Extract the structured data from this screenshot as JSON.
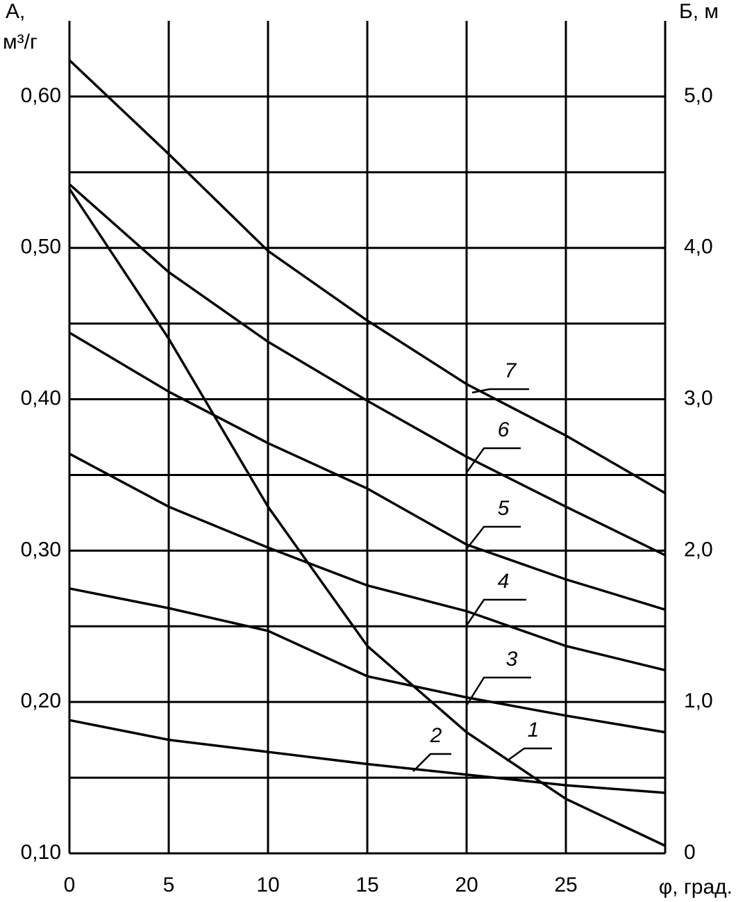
{
  "chart_data": {
    "type": "line",
    "y_label": [
      "А,",
      "м³/г"
    ],
    "y2_label": "Б, м",
    "x_label": "φ, град.",
    "x": [
      0,
      5,
      10,
      15,
      20,
      25,
      30
    ],
    "xlim": [
      0,
      30
    ],
    "xticks": [
      0,
      5,
      10,
      15,
      20,
      25
    ],
    "ylim": [
      0.1,
      0.65
    ],
    "yticks": [
      {
        "value": 0.1,
        "label": "0,10"
      },
      {
        "value": 0.2,
        "label": "0,20"
      },
      {
        "value": 0.3,
        "label": "0,30"
      },
      {
        "value": 0.4,
        "label": "0,40"
      },
      {
        "value": 0.5,
        "label": "0,50"
      },
      {
        "value": 0.6,
        "label": "0,60"
      }
    ],
    "ygrid": [
      0.15,
      0.25,
      0.35,
      0.45,
      0.55
    ],
    "y2lim": [
      0,
      5.5
    ],
    "y2ticks": [
      0,
      {
        "value": 1,
        "label": "1,0"
      },
      {
        "value": 2,
        "label": "2,0"
      },
      {
        "value": 3,
        "label": "3,0"
      },
      {
        "value": 4,
        "label": "4,0"
      },
      {
        "value": 5,
        "label": "5,0"
      }
    ],
    "grid": true,
    "series": [
      {
        "name": "1",
        "color": "#000000",
        "values": [
          0.539,
          0.44,
          0.329,
          0.237,
          0.18,
          0.136,
          0.105
        ]
      },
      {
        "name": "2",
        "color": "#000000",
        "values": [
          0.188,
          0.175,
          0.167,
          0.159,
          0.152,
          0.145,
          0.14
        ]
      },
      {
        "name": "3",
        "color": "#000000",
        "values": [
          0.275,
          0.262,
          0.247,
          0.217,
          0.203,
          0.191,
          0.18
        ]
      },
      {
        "name": "4",
        "color": "#000000",
        "values": [
          0.364,
          0.329,
          0.302,
          0.277,
          0.26,
          0.237,
          0.221
        ]
      },
      {
        "name": "5",
        "color": "#000000",
        "values": [
          0.444,
          0.405,
          0.371,
          0.341,
          0.304,
          0.281,
          0.261
        ]
      },
      {
        "name": "6",
        "color": "#000000",
        "values": [
          0.542,
          0.484,
          0.438,
          0.399,
          0.362,
          0.329,
          0.297
        ]
      },
      {
        "name": "7",
        "color": "#000000",
        "values": [
          0.624,
          0.562,
          0.498,
          0.452,
          0.41,
          0.376,
          0.338
        ]
      }
    ]
  }
}
